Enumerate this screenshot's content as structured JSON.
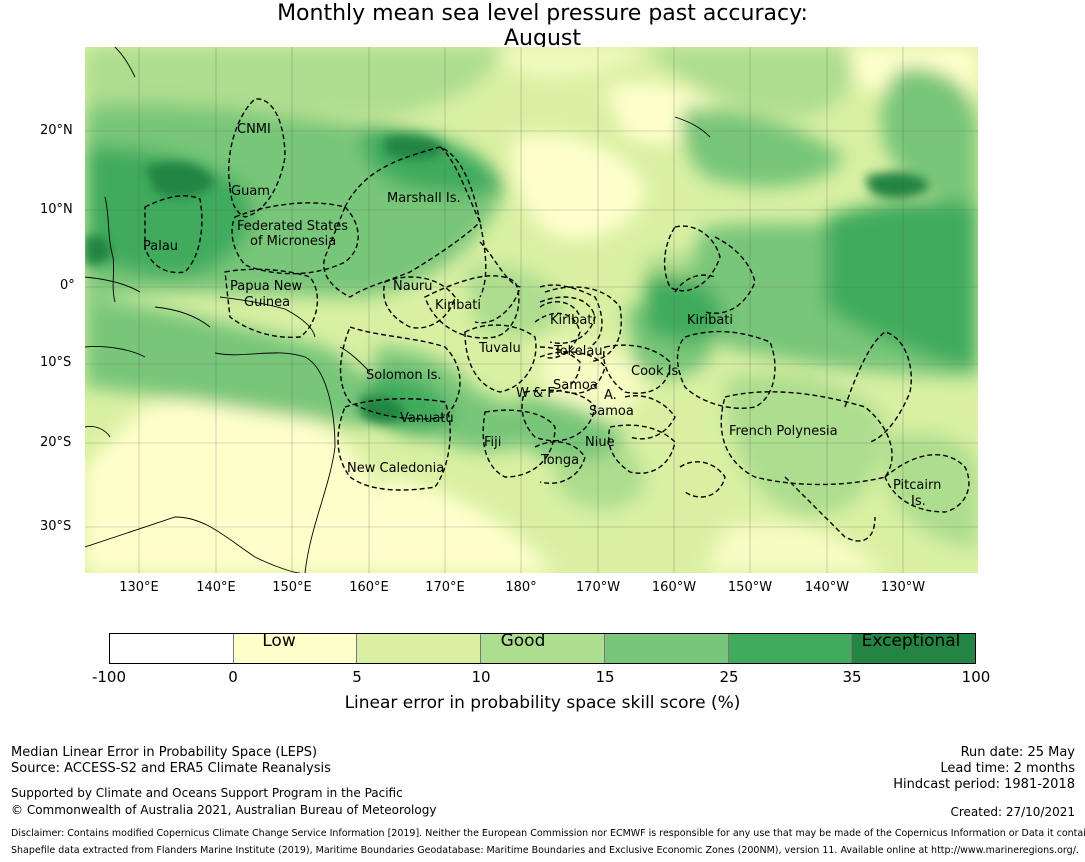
{
  "title_line1": "Monthly mean sea level pressure past accuracy:",
  "title_line2": "August",
  "map": {
    "lat_labels": [
      "20°N",
      "10°N",
      "0°",
      "10°S",
      "20°S",
      "30°S"
    ],
    "lon_labels": [
      "130°E",
      "140°E",
      "150°E",
      "160°E",
      "170°E",
      "180°",
      "170°W",
      "160°W",
      "150°W",
      "140°W",
      "130°W"
    ],
    "regions": [
      {
        "name": "CNMI"
      },
      {
        "name": "Guam"
      },
      {
        "name": "Marshall Is."
      },
      {
        "name": "Palau"
      },
      {
        "name": "Federated States"
      },
      {
        "name": "of Micronesia"
      },
      {
        "name": "Papua New"
      },
      {
        "name": "Guinea"
      },
      {
        "name": "Nauru"
      },
      {
        "name": "Kiribati"
      },
      {
        "name": "Kiribati"
      },
      {
        "name": "Kiribati"
      },
      {
        "name": "Tuvalu"
      },
      {
        "name": "Tokelau"
      },
      {
        "name": "Solomon Is."
      },
      {
        "name": "Samoa"
      },
      {
        "name": "W & F"
      },
      {
        "name": "A."
      },
      {
        "name": "Samoa"
      },
      {
        "name": "Cook Is."
      },
      {
        "name": "Vanuatu"
      },
      {
        "name": "Fiji"
      },
      {
        "name": "Niue"
      },
      {
        "name": "French Polynesia"
      },
      {
        "name": "Tonga"
      },
      {
        "name": "New Caledonia"
      },
      {
        "name": "Pitcairn"
      },
      {
        "name": "Is."
      }
    ]
  },
  "colorbar": {
    "colors": [
      "#ffffff",
      "#ffffcc",
      "#d9f0a3",
      "#addd8e",
      "#78c679",
      "#41ab5d",
      "#238443"
    ],
    "ticks": [
      "-100",
      "0",
      "5",
      "10",
      "15",
      "25",
      "35",
      "100"
    ],
    "categories": [
      "Low",
      "Good",
      "Exceptional"
    ],
    "label": "Linear error in probability space skill score (%)"
  },
  "footer": {
    "left1": "Median Linear Error in Probability Space (LEPS)",
    "left2": "Source: ACCESS-S2 and ERA5 Climate Reanalysis",
    "left3": "Supported by Climate and Oceans Support Program in the Pacific",
    "left4": "© Commonwealth of Australia 2021, Australian Bureau of Meteorology",
    "run_date": "Run date: 25 May",
    "lead_time": "Lead time: 2 months",
    "hindcast": "Hindcast period: 1981-2018",
    "created": "Created: 27/10/2021",
    "disclaimer1": "Disclaimer: Contains modified Copernicus Climate Change Service Information [2019]. Neither the European Commission nor ECMWF is responsible for any use that may be made of the Copernicus Information or Data it contains.",
    "disclaimer2": "Shapefile data extracted from Flanders Marine Institute (2019), Maritime Boundaries Geodatabase: Maritime Boundaries and Exclusive Economic Zones (200NM), version 11. Available online at http://www.marineregions.org/."
  }
}
